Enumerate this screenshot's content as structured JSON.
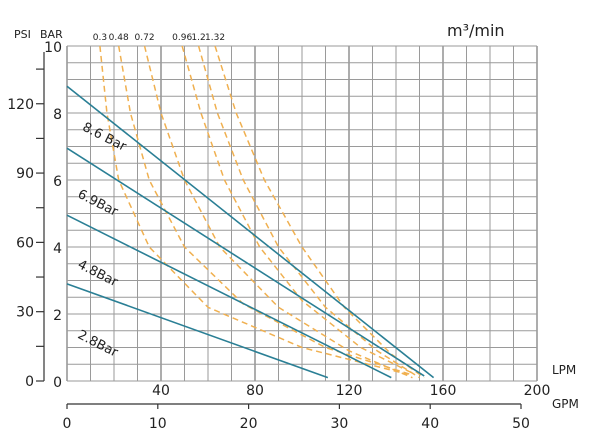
{
  "chart_data": {
    "type": "line",
    "title": "m³/min",
    "xlabel": "LPM",
    "x2label": "GPM",
    "ylabel": "BAR",
    "y2label": "PSI",
    "xlim": [
      0,
      200
    ],
    "ylim": [
      0,
      10
    ],
    "x_ticks": [
      0,
      40,
      80,
      120,
      160,
      200
    ],
    "gpm_ticks": [
      0,
      10,
      20,
      30,
      40,
      50
    ],
    "bar_ticks": [
      0,
      2,
      4,
      6,
      8,
      10
    ],
    "psi_ticks": [
      0,
      30,
      60,
      90,
      120
    ],
    "grid": true,
    "colors": {
      "pressure": "#2a7f95",
      "air": "#f0b050"
    },
    "pressure_series": [
      {
        "name": "8.6 Bar",
        "points": [
          [
            0,
            8.8
          ],
          [
            156,
            0.1
          ]
        ]
      },
      {
        "name": "6.9Bar",
        "points": [
          [
            0,
            6.95
          ],
          [
            152,
            0.15
          ]
        ]
      },
      {
        "name": "4.8Bar",
        "points": [
          [
            0,
            4.95
          ],
          [
            138,
            0.1
          ]
        ]
      },
      {
        "name": "2.8Bar",
        "points": [
          [
            0,
            2.9
          ],
          [
            111,
            0.1
          ]
        ]
      }
    ],
    "air_series": [
      {
        "name": "0.3",
        "points": [
          [
            14,
            10
          ],
          [
            17,
            8
          ],
          [
            22,
            6
          ],
          [
            35,
            4
          ],
          [
            60,
            2.2
          ],
          [
            100,
            1
          ],
          [
            145,
            0.2
          ]
        ]
      },
      {
        "name": "0.48",
        "points": [
          [
            22,
            10
          ],
          [
            27,
            8
          ],
          [
            35,
            6
          ],
          [
            50,
            4
          ],
          [
            75,
            2.3
          ],
          [
            110,
            1
          ],
          [
            146,
            0.2
          ]
        ]
      },
      {
        "name": "0.72",
        "points": [
          [
            33,
            10
          ],
          [
            40,
            8
          ],
          [
            50,
            6
          ],
          [
            65,
            4
          ],
          [
            90,
            2.2
          ],
          [
            120,
            0.9
          ],
          [
            147,
            0.1
          ]
        ]
      },
      {
        "name": "0.96",
        "points": [
          [
            49,
            10
          ],
          [
            57,
            8
          ],
          [
            67,
            6
          ],
          [
            82,
            4
          ],
          [
            100,
            2.4
          ],
          [
            125,
            1
          ],
          [
            148,
            0.2
          ]
        ]
      },
      {
        "name": "1.2",
        "points": [
          [
            56,
            10
          ],
          [
            64,
            8
          ],
          [
            75,
            6
          ],
          [
            90,
            4
          ],
          [
            110,
            2.2
          ],
          [
            132,
            0.9
          ],
          [
            150,
            0.1
          ]
        ]
      },
      {
        "name": "1.32",
        "points": [
          [
            63,
            10
          ],
          [
            72,
            8
          ],
          [
            84,
            6
          ],
          [
            100,
            4
          ],
          [
            118,
            2.2
          ],
          [
            138,
            0.8
          ],
          [
            152,
            0.1
          ]
        ]
      }
    ]
  }
}
